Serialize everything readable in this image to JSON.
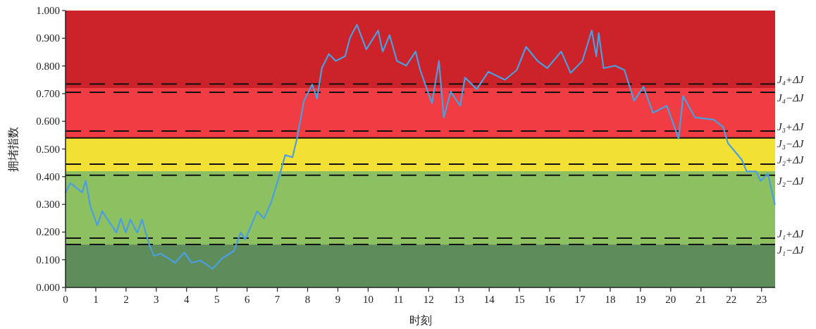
{
  "chart_data": {
    "type": "line",
    "xlabel": "时刻",
    "ylabel": "拥堵指数",
    "x": [
      0,
      0.16,
      0.55,
      0.67,
      0.82,
      1.05,
      1.21,
      1.68,
      1.83,
      1.99,
      2.14,
      2.37,
      2.53,
      2.76,
      2.92,
      3.15,
      3.62,
      3.93,
      4.16,
      4.47,
      4.86,
      5.17,
      5.56,
      5.79,
      5.94,
      6.33,
      6.56,
      6.8,
      7.11,
      7.26,
      7.5,
      7.65,
      7.88,
      8.15,
      8.31,
      8.47,
      8.7,
      8.93,
      9.24,
      9.4,
      9.63,
      9.94,
      10.33,
      10.48,
      10.71,
      10.95,
      11.26,
      11.57,
      11.72,
      12.11,
      12.34,
      12.5,
      12.73,
      13.04,
      13.2,
      13.59,
      13.97,
      14.52,
      14.91,
      15.22,
      15.6,
      15.92,
      16.38,
      16.69,
      17.08,
      17.39,
      17.54,
      17.62,
      17.78,
      18.16,
      18.47,
      18.79,
      19.1,
      19.41,
      19.87,
      20.26,
      20.41,
      20.8,
      21.42,
      21.73,
      21.89,
      22.35,
      22.51,
      22.82,
      22.97,
      23.21,
      23.44
    ],
    "series": [
      {
        "color": "#4a9fe0",
        "values": [
          0.343,
          0.377,
          0.343,
          0.385,
          0.292,
          0.224,
          0.275,
          0.198,
          0.249,
          0.198,
          0.245,
          0.198,
          0.245,
          0.156,
          0.114,
          0.122,
          0.089,
          0.126,
          0.089,
          0.097,
          0.067,
          0.105,
          0.131,
          0.198,
          0.173,
          0.275,
          0.249,
          0.309,
          0.419,
          0.478,
          0.47,
          0.538,
          0.674,
          0.733,
          0.682,
          0.792,
          0.843,
          0.818,
          0.835,
          0.902,
          0.949,
          0.86,
          0.928,
          0.852,
          0.911,
          0.818,
          0.801,
          0.852,
          0.785,
          0.665,
          0.818,
          0.614,
          0.707,
          0.656,
          0.758,
          0.716,
          0.779,
          0.75,
          0.785,
          0.869,
          0.818,
          0.792,
          0.852,
          0.775,
          0.818,
          0.928,
          0.835,
          0.919,
          0.792,
          0.801,
          0.785,
          0.674,
          0.725,
          0.631,
          0.656,
          0.538,
          0.691,
          0.614,
          0.606,
          0.58,
          0.521,
          0.461,
          0.419,
          0.419,
          0.385,
          0.411,
          0.3
        ]
      }
    ],
    "xlim": [
      0,
      23.45
    ],
    "xticks": [
      0,
      1,
      2,
      3,
      4,
      5,
      6,
      7,
      8,
      9,
      10,
      11,
      12,
      13,
      14,
      15,
      16,
      17,
      18,
      19,
      20,
      21,
      22,
      23
    ],
    "ylim": [
      0,
      1
    ],
    "yticks": [
      {
        "value": 0,
        "label": "0.000"
      },
      {
        "value": 0.1,
        "label": "0.100"
      },
      {
        "value": 0.2,
        "label": "0.200"
      },
      {
        "value": 0.3,
        "label": "0.300"
      },
      {
        "value": 0.4,
        "label": "0.400"
      },
      {
        "value": 0.5,
        "label": "0.500"
      },
      {
        "value": 0.6,
        "label": "0.600"
      },
      {
        "value": 0.7,
        "label": "0.700"
      },
      {
        "value": 0.8,
        "label": "0.800"
      },
      {
        "value": 0.9,
        "label": "0.900"
      },
      {
        "value": 1,
        "label": "1.000"
      }
    ],
    "bands": [
      {
        "axis": "y",
        "from": 0,
        "to": 0.155,
        "color": "#5e8c5a"
      },
      {
        "axis": "y",
        "from": 0.155,
        "to": 0.42,
        "color": "#8cc060"
      },
      {
        "axis": "y",
        "from": 0.42,
        "to": 0.54,
        "color": "#f3e035"
      },
      {
        "axis": "y",
        "from": 0.54,
        "to": 0.72,
        "color": "#f03c42"
      },
      {
        "axis": "y",
        "from": 0.72,
        "to": 1,
        "color": "#cc2229"
      }
    ],
    "ref_lines": [
      {
        "axis": "y",
        "value": 0.735,
        "label": "J₄+ΔJ",
        "color": "#111111",
        "line_style": "dashed"
      },
      {
        "axis": "y",
        "value": 0.705,
        "label": "J₄−ΔJ",
        "color": "#111111",
        "line_style": "dashed"
      },
      {
        "axis": "y",
        "value": 0.565,
        "label": "J₃+ΔJ",
        "color": "#111111",
        "line_style": "dashed"
      },
      {
        "axis": "y",
        "value": 0.54,
        "label": "J₃−ΔJ",
        "color": "#111111",
        "line_style": "solid"
      },
      {
        "axis": "y",
        "value": 0.445,
        "label": "J₂+ΔJ",
        "color": "#111111",
        "line_style": "dashed"
      },
      {
        "axis": "y",
        "value": 0.405,
        "label": "J₂−ΔJ",
        "color": "#111111",
        "line_style": "dashed"
      },
      {
        "axis": "y",
        "value": 0.178,
        "label": "J₁+ΔJ",
        "color": "#111111",
        "line_style": "dashed"
      },
      {
        "axis": "y",
        "value": 0.155,
        "label": "J₁−ΔJ",
        "color": "#111111",
        "line_style": "dashed"
      }
    ]
  }
}
